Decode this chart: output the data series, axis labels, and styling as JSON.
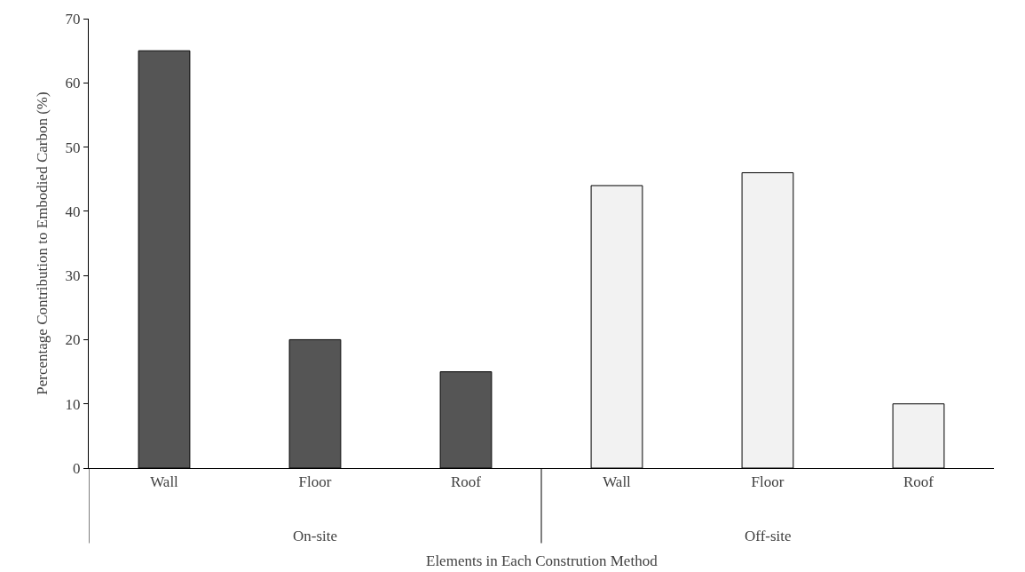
{
  "chart_data": {
    "type": "bar",
    "xlabel": "Elements in Each Constrution Method",
    "ylabel": "Percentage Contribution to Embodied Carbon (%)",
    "categories": [
      "Wall",
      "Floor",
      "Roof",
      "Wall",
      "Floor",
      "Roof"
    ],
    "values": [
      65,
      20,
      15,
      44,
      46,
      10
    ],
    "colors": [
      "#555555",
      "#555555",
      "#555555",
      "#f2f2f2",
      "#f2f2f2",
      "#f2f2f2"
    ],
    "annotations": [
      "On-site",
      "Off-site"
    ],
    "ylim": [
      0,
      70
    ],
    "yticks": [
      0,
      10,
      20,
      30,
      40,
      50,
      60,
      70
    ],
    "grid": false,
    "legend": false
  }
}
